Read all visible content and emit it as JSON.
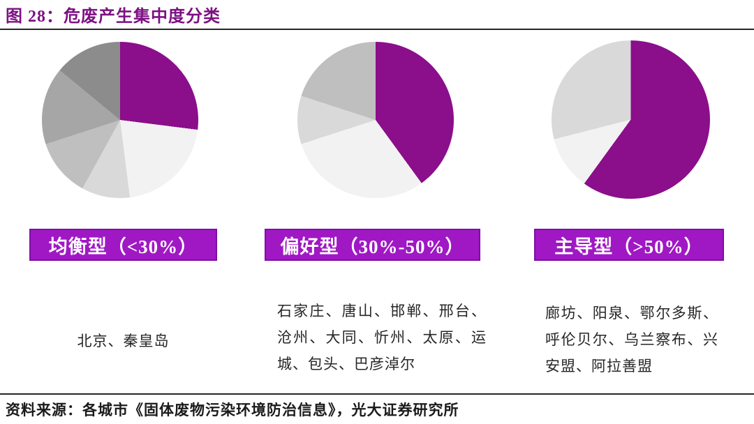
{
  "page": {
    "title": "图 28：危废产生集中度分类",
    "source": "资料来源：各城市《固体废物污染环境防治信息》，光大证券研究所"
  },
  "colors": {
    "title_text": "#7d1083",
    "pie_accent_purple": "#8b0e8b",
    "category_box_fill": "#a018c4",
    "category_box_border": "#7d0fa5",
    "gray_shades": [
      "#f2f2f2",
      "#d9d9d9",
      "#bfbfbf",
      "#a6a6a6",
      "#8c8c8c"
    ],
    "rule_line": "#262626"
  },
  "chart_data": [
    {
      "type": "pie",
      "title": "均衡型（<30%）",
      "values": [
        27,
        21,
        10,
        12,
        16,
        14
      ],
      "slice_colors": [
        "#8b0e8b",
        "#f2f2f2",
        "#d9d9d9",
        "#bfbfbf",
        "#a6a6a6",
        "#8c8c8c"
      ],
      "start_angle_deg": 0,
      "direction": "clockwise",
      "legend": "none",
      "cities": "北京、秦皇岛"
    },
    {
      "type": "pie",
      "title": "偏好型（30%-50%）",
      "values": [
        40,
        30,
        10,
        20
      ],
      "slice_colors": [
        "#8b0e8b",
        "#f2f2f2",
        "#d9d9d9",
        "#bfbfbf"
      ],
      "start_angle_deg": 0,
      "direction": "clockwise",
      "legend": "none",
      "cities": "石家庄、唐山、邯郸、邢台、沧州、大同、忻州、太原、运城、包头、巴彦淖尔"
    },
    {
      "type": "pie",
      "title": "主导型（>50%）",
      "values": [
        60,
        11,
        29
      ],
      "slice_colors": [
        "#8b0e8b",
        "#f2f2f2",
        "#d9d9d9"
      ],
      "start_angle_deg": 0,
      "direction": "clockwise",
      "legend": "none",
      "cities": "廊坊、阳泉、鄂尔多斯、呼伦贝尔、乌兰察布、兴安盟、阿拉善盟"
    }
  ]
}
